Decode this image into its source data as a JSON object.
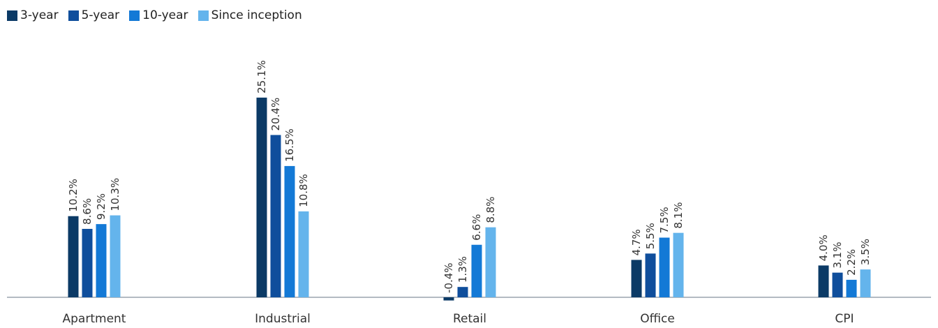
{
  "chart_data": {
    "type": "bar",
    "categories": [
      "Apartment",
      "Industrial",
      "Retail",
      "Office",
      "CPI"
    ],
    "series": [
      {
        "name": "3-year",
        "color": "#0b3a66",
        "values": [
          10.2,
          25.1,
          -0.4,
          4.7,
          4.0
        ],
        "labels": [
          "10.2%",
          "25.1%",
          "-0.4%",
          "4.7%",
          "4.0%"
        ]
      },
      {
        "name": "5-year",
        "color": "#0f4e9c",
        "values": [
          8.6,
          20.4,
          1.3,
          5.5,
          3.1
        ],
        "labels": [
          "8.6%",
          "20.4%",
          "1.3%",
          "5.5%",
          "3.1%"
        ]
      },
      {
        "name": "10-year",
        "color": "#1379d6",
        "values": [
          9.2,
          16.5,
          6.6,
          7.5,
          2.2
        ],
        "labels": [
          "9.2%",
          "16.5%",
          "6.6%",
          "7.5%",
          "2.2%"
        ]
      },
      {
        "name": "Since inception",
        "color": "#64b4ec",
        "values": [
          10.3,
          10.8,
          8.8,
          8.1,
          3.5
        ],
        "labels": [
          "10.3%",
          "10.8%",
          "8.8%",
          "8.1%",
          "3.5%"
        ]
      }
    ],
    "title": "",
    "xlabel": "",
    "ylabel": "",
    "ylim": [
      -1,
      28
    ],
    "grid": false,
    "legend_position": "top-left",
    "baseline_color": "#9aa3ad"
  }
}
